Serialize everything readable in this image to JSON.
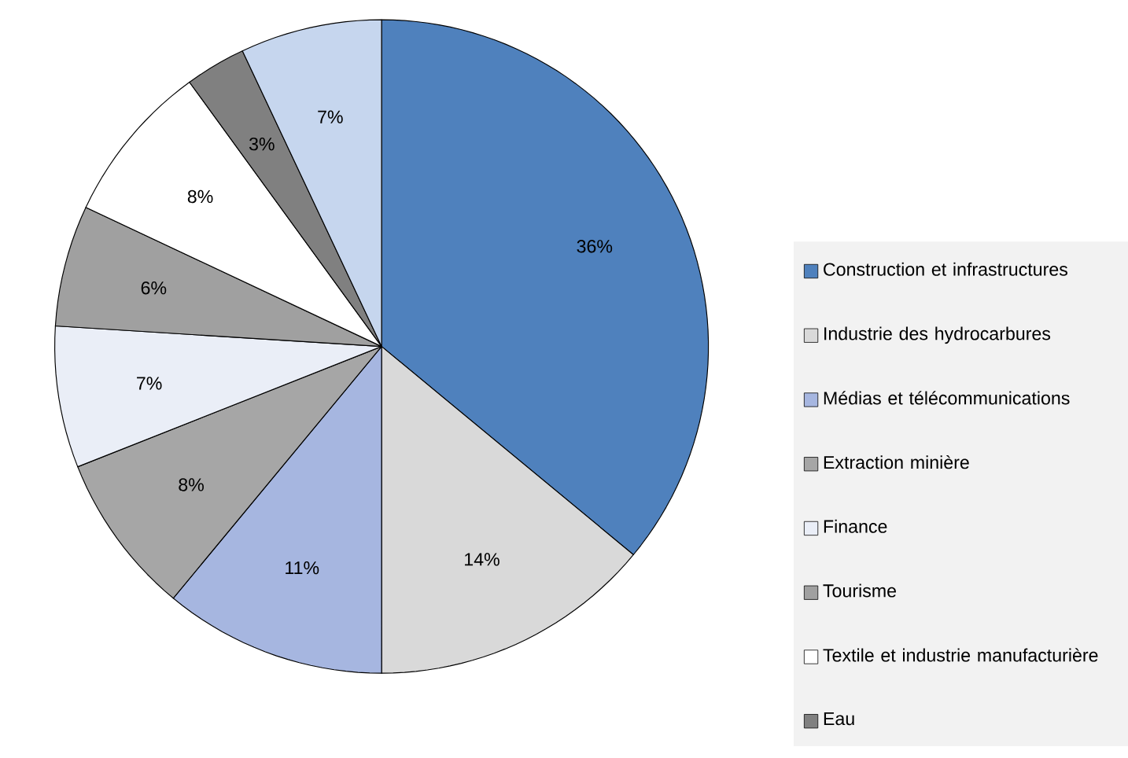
{
  "chart_data": {
    "type": "pie",
    "categories": [
      "Construction et infrastructures",
      "Industrie des hydrocarbures",
      "Médias et télécommunications",
      "Extraction minière",
      "Finance",
      "Tourisme",
      "Textile et industrie manufacturière",
      "Eau",
      null
    ],
    "values": [
      36,
      14,
      11,
      8,
      7,
      6,
      8,
      3,
      7
    ],
    "colors": [
      "#4f81bd",
      "#d9d9d9",
      "#a6b6e0",
      "#a6a6a6",
      "#eaeef7",
      "#a0a0a0",
      "#ffffff",
      "#808080",
      "#c6d6ee"
    ],
    "value_labels": [
      "36%",
      "14%",
      "11%",
      "8%",
      "7%",
      "6%",
      "8%",
      "3%",
      "7%"
    ],
    "legend": "right"
  }
}
